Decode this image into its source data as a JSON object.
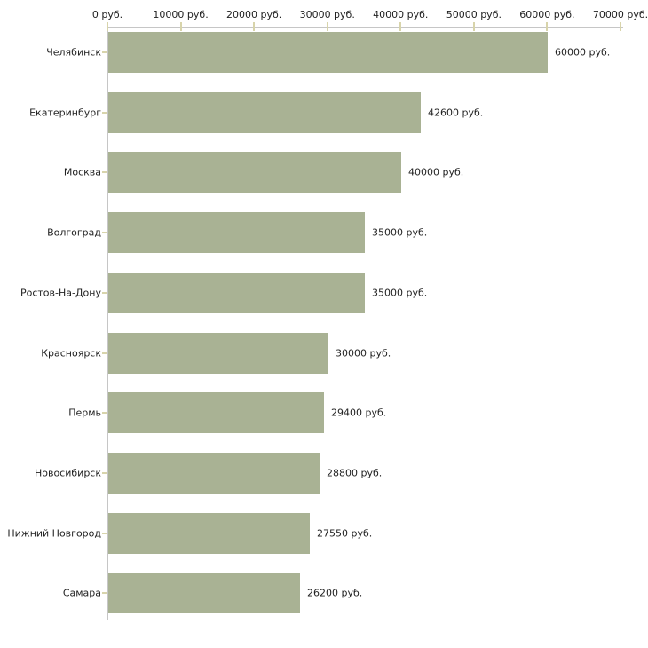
{
  "chart_data": {
    "type": "bar",
    "orientation": "horizontal",
    "title": "",
    "xlabel": "",
    "ylabel": "",
    "unit": "руб.",
    "xlim": [
      0,
      70000
    ],
    "grid": false,
    "legend": null,
    "categories": [
      "Челябинск",
      "Екатеринбург",
      "Москва",
      "Волгоград",
      "Ростов-На-Дону",
      "Красноярск",
      "Пермь",
      "Новосибирск",
      "Нижний Новгород",
      "Самара"
    ],
    "values": [
      60000,
      42600,
      40000,
      35000,
      35000,
      30000,
      29400,
      28800,
      27550,
      26200
    ],
    "value_labels": [
      "60000 руб.",
      "42600 руб.",
      "40000 руб.",
      "35000 руб.",
      "35000 руб.",
      "30000 руб.",
      "29400 руб.",
      "28800 руб.",
      "27550 руб.",
      "26200 руб."
    ],
    "x_tick_values": [
      0,
      10000,
      20000,
      30000,
      40000,
      50000,
      60000,
      70000
    ],
    "x_tick_labels": [
      "0 руб.",
      "10000 руб.",
      "20000 руб.",
      "30000 руб.",
      "40000 руб.",
      "50000 руб.",
      "60000 руб.",
      "70000 руб."
    ],
    "colors": {
      "bar": "#a9b294",
      "axis_line": "#c6c6c6",
      "tick_mark": "#d8d4ab",
      "text": "#222222",
      "background": "#ffffff"
    }
  }
}
